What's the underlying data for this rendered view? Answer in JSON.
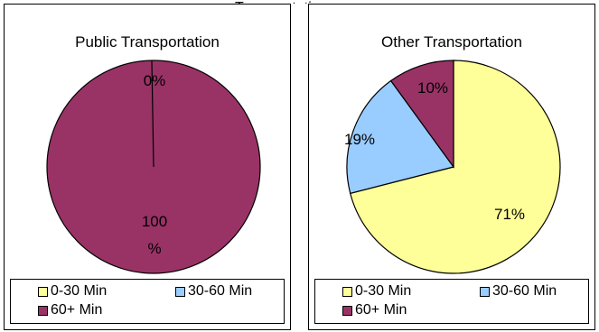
{
  "page_title_fragment": "Transportation",
  "chart_data": [
    {
      "type": "pie",
      "title": "Public Transportation",
      "categories": [
        "0-30 Min",
        "30-60 Min",
        "60+ Min"
      ],
      "values": [
        0,
        0,
        100
      ],
      "colors": [
        "#ffff99",
        "#99ccff",
        "#993366"
      ],
      "data_labels": [
        "0%",
        "",
        [
          "100",
          "%"
        ]
      ],
      "legend": "bottom",
      "legend_items": [
        "0-30 Min",
        "30-60 Min",
        "60+ Min"
      ]
    },
    {
      "type": "pie",
      "title": "Other Transportation",
      "categories": [
        "0-30 Min",
        "30-60 Min",
        "60+ Min"
      ],
      "values": [
        71,
        19,
        10
      ],
      "colors": [
        "#ffff99",
        "#99ccff",
        "#993366"
      ],
      "data_labels": [
        "71%",
        "19%",
        "10%"
      ],
      "legend": "bottom",
      "legend_items": [
        "0-30 Min",
        "30-60 Min",
        "60+ Min"
      ]
    }
  ]
}
